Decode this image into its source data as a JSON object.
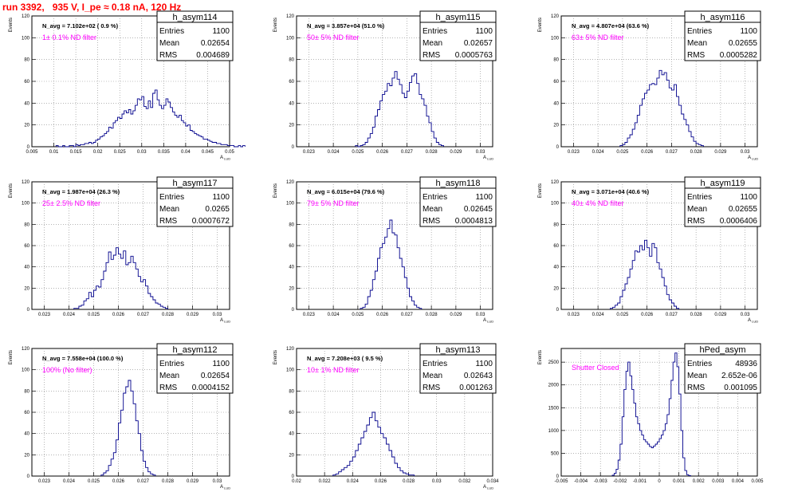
{
  "run_title": "run 3392,   935 V, I_pe ≈ 0.18 nA, 120 Hz",
  "chart_data": [
    {
      "type": "bar",
      "name": "h_asym114",
      "navg": "N_avg = 7.102e+02 ( 0.9 %)",
      "filter": "1± 0.1% ND filter",
      "stats": [
        [
          "Entries",
          "1100"
        ],
        [
          "Mean",
          "0.02654"
        ],
        [
          "RMS",
          "0.004689"
        ]
      ],
      "ylabel": "Events",
      "xlabel": "A_LUD",
      "xlim": [
        0.005,
        0.05
      ],
      "ylim": [
        0,
        120
      ],
      "xticks": [
        0.005,
        0.01,
        0.015,
        0.02,
        0.025,
        0.03,
        0.035,
        0.04,
        0.045,
        0.05
      ],
      "xtick_labels": [
        "0.005",
        "0.01",
        "0.015",
        "0.02",
        "0.025",
        "0.03",
        "0.035",
        "0.04",
        "0.045",
        "0.05"
      ],
      "yticks": [
        0,
        20,
        40,
        60,
        80,
        100,
        120
      ],
      "x_start": 0.0105,
      "bin_width": 0.0005,
      "values": [
        1,
        0,
        0,
        1,
        0,
        0,
        1,
        1,
        0,
        2,
        1,
        2,
        2,
        3,
        3,
        4,
        3,
        4,
        6,
        7,
        9,
        10,
        12,
        14,
        18,
        17,
        22,
        24,
        27,
        26,
        30,
        33,
        31,
        34,
        30,
        33,
        38,
        44,
        43,
        46,
        37,
        35,
        42,
        36,
        49,
        52,
        43,
        38,
        35,
        38,
        44,
        41,
        36,
        32,
        29,
        27,
        29,
        24,
        22,
        19,
        20,
        15,
        14,
        12,
        11,
        10,
        9,
        7,
        7,
        6,
        5,
        4,
        4,
        3,
        3,
        2,
        2,
        2,
        1,
        1,
        1,
        0,
        0,
        1,
        0,
        1
      ]
    },
    {
      "type": "bar",
      "name": "h_asym115",
      "navg": "N_avg = 3.857e+04 (51.0 %)",
      "filter": "50± 5% ND filter",
      "stats": [
        [
          "Entries",
          "1100"
        ],
        [
          "Mean",
          "0.02657"
        ],
        [
          "RMS",
          "0.0005763"
        ]
      ],
      "ylabel": "Events",
      "xlabel": "A_LUD",
      "xlim": [
        0.0225,
        0.0305
      ],
      "ylim": [
        0,
        120
      ],
      "xticks": [
        0.023,
        0.024,
        0.025,
        0.026,
        0.027,
        0.028,
        0.029,
        0.03
      ],
      "xtick_labels": [
        "0.023",
        "0.024",
        "0.025",
        "0.026",
        "0.027",
        "0.028",
        "0.029",
        "0.03"
      ],
      "yticks": [
        0,
        20,
        40,
        60,
        80,
        100,
        120
      ],
      "x_start": 0.0249,
      "bin_width": 0.0001,
      "values": [
        1,
        0,
        1,
        2,
        4,
        8,
        12,
        18,
        28,
        34,
        42,
        48,
        51,
        58,
        56,
        63,
        69,
        62,
        57,
        49,
        45,
        51,
        59,
        65,
        67,
        58,
        48,
        44,
        38,
        28,
        22,
        14,
        8,
        4,
        2,
        1
      ]
    },
    {
      "type": "bar",
      "name": "h_asym116",
      "navg": "N_avg = 4.807e+04 (63.6 %)",
      "filter": "63± 5% ND filter",
      "stats": [
        [
          "Entries",
          "1100"
        ],
        [
          "Mean",
          "0.02655"
        ],
        [
          "RMS",
          "0.0005282"
        ]
      ],
      "ylabel": "Events",
      "xlabel": "A_LUD",
      "xlim": [
        0.0225,
        0.0305
      ],
      "ylim": [
        0,
        120
      ],
      "xticks": [
        0.023,
        0.024,
        0.025,
        0.026,
        0.027,
        0.028,
        0.029,
        0.03
      ],
      "xtick_labels": [
        "0.023",
        "0.024",
        "0.025",
        "0.026",
        "0.027",
        "0.028",
        "0.029",
        "0.03"
      ],
      "yticks": [
        0,
        20,
        40,
        60,
        80,
        100,
        120
      ],
      "x_start": 0.0249,
      "bin_width": 0.0001,
      "values": [
        1,
        2,
        4,
        8,
        11,
        16,
        22,
        29,
        38,
        44,
        49,
        52,
        57,
        58,
        57,
        63,
        70,
        66,
        68,
        61,
        54,
        52,
        57,
        46,
        38,
        30,
        25,
        20,
        14,
        9,
        5,
        3,
        2,
        1
      ]
    },
    {
      "type": "bar",
      "name": "h_asym117",
      "navg": "N_avg = 1.987e+04 (26.3 %)",
      "filter": "25± 2.5% ND filter",
      "stats": [
        [
          "Entries",
          "1100"
        ],
        [
          "Mean",
          "0.0265"
        ],
        [
          "RMS",
          "0.0007672"
        ]
      ],
      "ylabel": "Events",
      "xlabel": "A_LUD",
      "xlim": [
        0.0225,
        0.0305
      ],
      "ylim": [
        0,
        120
      ],
      "xticks": [
        0.023,
        0.024,
        0.025,
        0.026,
        0.027,
        0.028,
        0.029,
        0.03
      ],
      "xtick_labels": [
        "0.023",
        "0.024",
        "0.025",
        "0.026",
        "0.027",
        "0.028",
        "0.029",
        "0.03"
      ],
      "yticks": [
        0,
        20,
        40,
        60,
        80,
        100,
        120
      ],
      "x_start": 0.0242,
      "bin_width": 0.0001,
      "values": [
        1,
        1,
        3,
        4,
        8,
        10,
        16,
        12,
        18,
        22,
        21,
        28,
        36,
        44,
        54,
        47,
        51,
        58,
        52,
        48,
        55,
        42,
        44,
        50,
        44,
        38,
        31,
        26,
        28,
        22,
        15,
        12,
        9,
        6,
        5,
        3,
        2,
        1
      ]
    },
    {
      "type": "bar",
      "name": "h_asym118",
      "navg": "N_avg = 6.015e+04 (79.6 %)",
      "filter": "79± 5% ND filter",
      "stats": [
        [
          "Entries",
          "1100"
        ],
        [
          "Mean",
          "0.02645"
        ],
        [
          "RMS",
          "0.0004813"
        ]
      ],
      "ylabel": "Events",
      "xlabel": "A_LUD",
      "xlim": [
        0.0225,
        0.0305
      ],
      "ylim": [
        0,
        120
      ],
      "xticks": [
        0.023,
        0.024,
        0.025,
        0.026,
        0.027,
        0.028,
        0.029,
        0.03
      ],
      "xtick_labels": [
        "0.023",
        "0.024",
        "0.025",
        "0.026",
        "0.027",
        "0.028",
        "0.029",
        "0.03"
      ],
      "yticks": [
        0,
        20,
        40,
        60,
        80,
        100,
        120
      ],
      "x_start": 0.0251,
      "bin_width": 0.0001,
      "values": [
        1,
        2,
        5,
        12,
        18,
        28,
        36,
        48,
        58,
        62,
        68,
        76,
        84,
        72,
        70,
        58,
        48,
        40,
        30,
        20,
        12,
        8,
        4,
        2,
        1
      ]
    },
    {
      "type": "bar",
      "name": "h_asym119",
      "navg": "N_avg = 3.071e+04 (40.6 %)",
      "filter": "40± 4% ND filter",
      "stats": [
        [
          "Entries",
          "1100"
        ],
        [
          "Mean",
          "0.02655"
        ],
        [
          "RMS",
          "0.0006406"
        ]
      ],
      "ylabel": "Events",
      "xlabel": "A_LUD",
      "xlim": [
        0.0225,
        0.0305
      ],
      "ylim": [
        0,
        120
      ],
      "xticks": [
        0.023,
        0.024,
        0.025,
        0.026,
        0.027,
        0.028,
        0.029,
        0.03
      ],
      "xtick_labels": [
        "0.023",
        "0.024",
        "0.025",
        "0.026",
        "0.027",
        "0.028",
        "0.029",
        "0.03"
      ],
      "yticks": [
        0,
        20,
        40,
        60,
        80,
        100,
        120
      ],
      "x_start": 0.0245,
      "bin_width": 0.0001,
      "values": [
        1,
        2,
        4,
        6,
        12,
        18,
        24,
        30,
        38,
        46,
        55,
        54,
        60,
        56,
        65,
        58,
        50,
        62,
        58,
        44,
        38,
        30,
        22,
        14,
        9,
        6,
        3,
        1
      ]
    },
    {
      "type": "bar",
      "name": "h_asym112",
      "navg": "N_avg = 7.558e+04 (100.0 %)",
      "filter": "100% (No filter)",
      "stats": [
        [
          "Entries",
          "1100"
        ],
        [
          "Mean",
          "0.02654"
        ],
        [
          "RMS",
          "0.0004152"
        ]
      ],
      "ylabel": "Events",
      "xlabel": "A_LUD",
      "xlim": [
        0.0225,
        0.0305
      ],
      "ylim": [
        0,
        120
      ],
      "xticks": [
        0.023,
        0.024,
        0.025,
        0.026,
        0.027,
        0.028,
        0.029,
        0.03
      ],
      "xtick_labels": [
        "0.023",
        "0.024",
        "0.025",
        "0.026",
        "0.027",
        "0.028",
        "0.029",
        "0.03"
      ],
      "yticks": [
        0,
        20,
        40,
        60,
        80,
        100,
        120
      ],
      "x_start": 0.0253,
      "bin_width": 0.0001,
      "values": [
        1,
        3,
        5,
        10,
        16,
        22,
        34,
        50,
        62,
        78,
        84,
        90,
        80,
        68,
        52,
        40,
        24,
        14,
        8,
        4,
        2,
        1
      ]
    },
    {
      "type": "bar",
      "name": "h_asym113",
      "navg": "N_avg = 7.208e+03 ( 9.5 %)",
      "filter": "10± 1% ND filter",
      "stats": [
        [
          "Entries",
          "1100"
        ],
        [
          "Mean",
          "0.02643"
        ],
        [
          "RMS",
          "0.001263"
        ]
      ],
      "ylabel": "Events",
      "xlabel": "A_LUD",
      "xlim": [
        0.02,
        0.034
      ],
      "ylim": [
        0,
        120
      ],
      "xticks": [
        0.02,
        0.022,
        0.024,
        0.026,
        0.028,
        0.03,
        0.032,
        0.034
      ],
      "xtick_labels": [
        "0.02",
        "0.022",
        "0.024",
        "0.026",
        "0.028",
        "0.03",
        "0.032",
        "0.034"
      ],
      "yticks": [
        0,
        20,
        40,
        60,
        80,
        100,
        120
      ],
      "x_start": 0.0226,
      "bin_width": 0.0002,
      "values": [
        1,
        2,
        4,
        6,
        8,
        10,
        14,
        18,
        24,
        30,
        36,
        42,
        48,
        55,
        60,
        52,
        46,
        40,
        36,
        30,
        24,
        18,
        12,
        8,
        5,
        3,
        2,
        1,
        1
      ]
    },
    {
      "type": "bar",
      "name": "hPed_asym",
      "navg": "",
      "filter": "Shutter Closed",
      "stats": [
        [
          "Entries",
          "48936"
        ],
        [
          "Mean",
          "2.652e-06"
        ],
        [
          "RMS",
          "0.001095"
        ]
      ],
      "ylabel": "Events",
      "xlabel": "",
      "xlim": [
        -0.005,
        0.005
      ],
      "ylim": [
        0,
        2800
      ],
      "xticks": [
        -0.005,
        -0.004,
        -0.003,
        -0.002,
        -0.001,
        0,
        0.001,
        0.002,
        0.003,
        0.004,
        0.005
      ],
      "xtick_labels": [
        "-0.005",
        "-0.004",
        "-0.003",
        "-0.002",
        "-0.001",
        "0",
        "0.001",
        "0.002",
        "0.003",
        "0.004",
        "0.005"
      ],
      "yticks": [
        0,
        500,
        1000,
        1500,
        2000,
        2500
      ],
      "x_start": -0.0024,
      "bin_width": 0.0001,
      "values": [
        20,
        60,
        150,
        350,
        700,
        1300,
        1900,
        2300,
        2500,
        2200,
        1900,
        1600,
        1300,
        1150,
        1000,
        900,
        800,
        750,
        700,
        650,
        620,
        660,
        700,
        750,
        820,
        900,
        1000,
        1150,
        1350,
        1700,
        2100,
        2500,
        2700,
        2400,
        1800,
        1000,
        400,
        120,
        30,
        10
      ]
    }
  ]
}
